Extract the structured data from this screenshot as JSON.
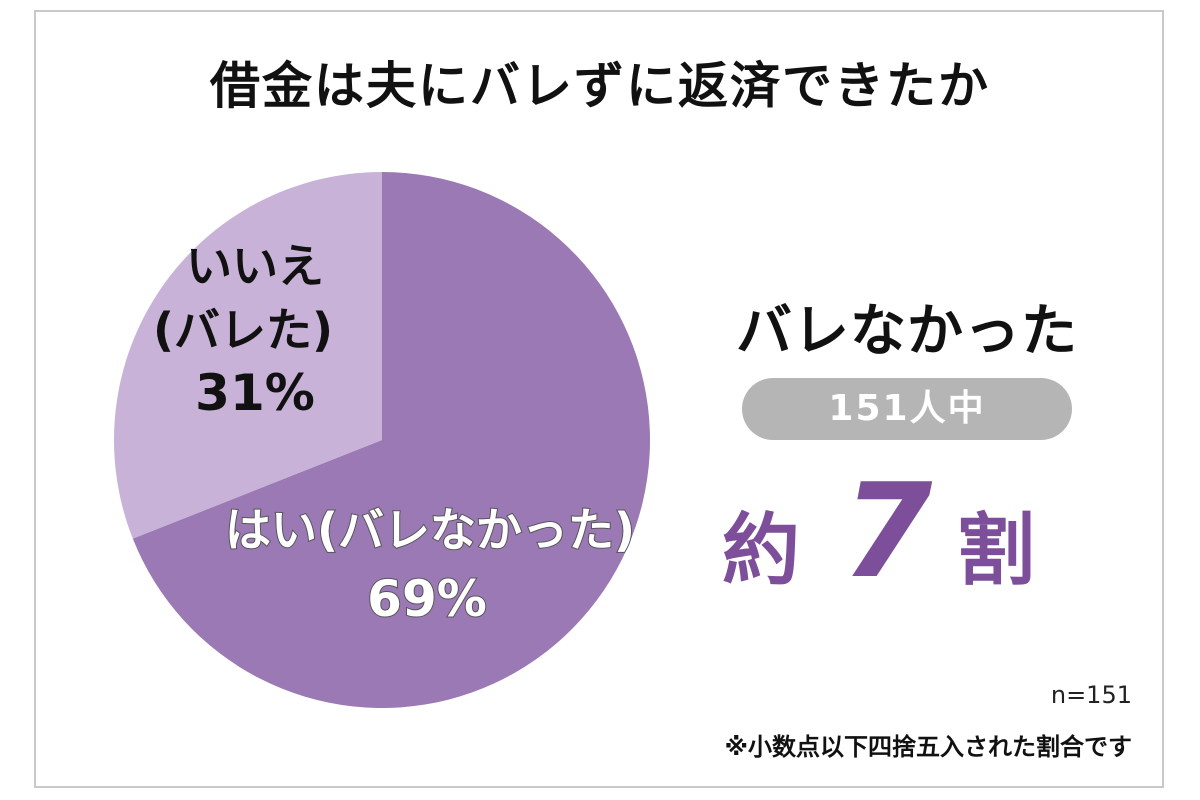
{
  "title": "借金は夫にバレずに返済できたか",
  "headline": "バレなかった",
  "count_label": "151人中",
  "summary": {
    "prefix": "約",
    "number": "7",
    "suffix": "割"
  },
  "n_label": "n=151",
  "footnote": "※小数点以下四捨五入された割合です",
  "colors": {
    "yes": "#9b79b5",
    "no": "#c8b2d8",
    "summary": "#7d4f9a",
    "pill": "#b5b5b5"
  },
  "chart_data": {
    "type": "pie",
    "title": "借金は夫にバレずに返済できたか",
    "slices": [
      {
        "label": "はい(バレなかった)",
        "value": 69,
        "value_label": "69%"
      },
      {
        "label_line1": "いいえ",
        "label_line2": "(バレた)",
        "value": 31,
        "value_label": "31%"
      }
    ]
  }
}
